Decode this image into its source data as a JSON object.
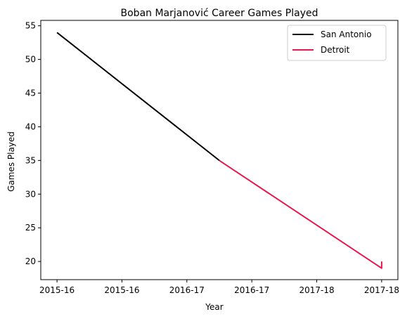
{
  "chart_data": {
    "type": "line",
    "title": "Boban Marjanović Career Games Played",
    "xlabel": "Year",
    "ylabel": "Games Played",
    "x_tick_labels": [
      "2015-16",
      "2015-16",
      "2016-17",
      "2016-17",
      "2017-18",
      "2017-18"
    ],
    "xlim": [
      -0.1,
      2.1
    ],
    "ylim": [
      17.3,
      55.8
    ],
    "y_ticks": [
      20,
      25,
      30,
      35,
      40,
      45,
      50,
      55
    ],
    "grid": false,
    "legend_position": "top-right",
    "series": [
      {
        "name": "San Antonio",
        "color": "#000000",
        "points": [
          [
            0,
            54
          ],
          [
            1,
            35
          ]
        ]
      },
      {
        "name": "Detroit",
        "color": "#e31a4f",
        "points": [
          [
            1,
            35
          ],
          [
            2,
            19
          ],
          [
            2,
            20
          ]
        ]
      }
    ]
  }
}
